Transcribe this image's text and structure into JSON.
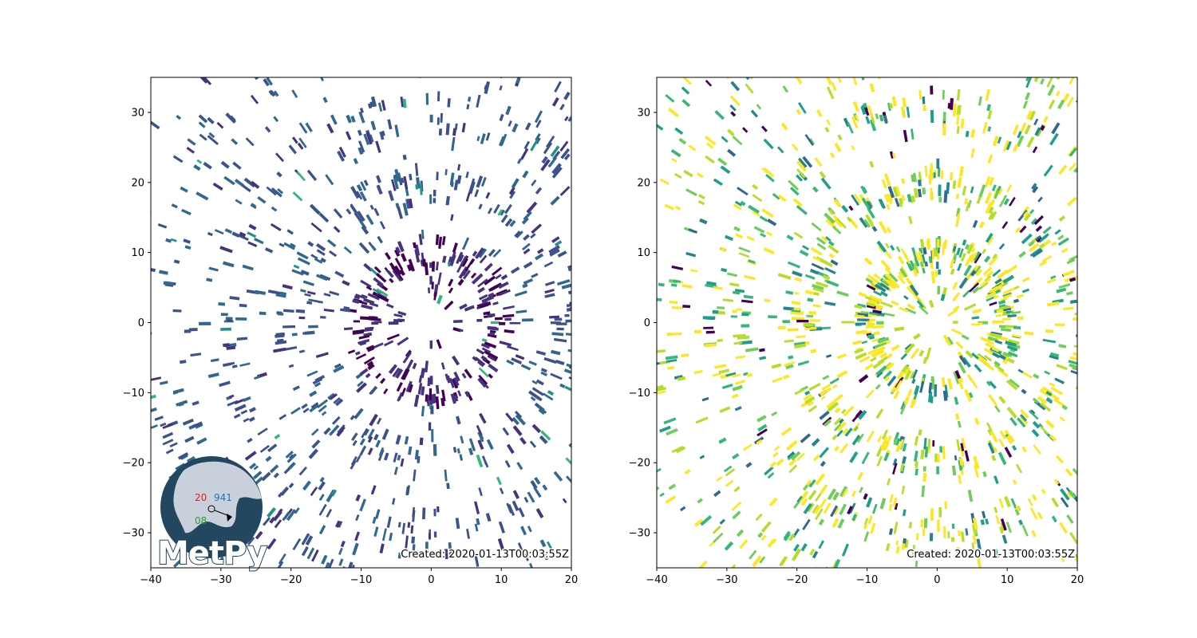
{
  "chart_data": [
    {
      "type": "heatmap",
      "panel": "left",
      "title": "",
      "xlabel": "",
      "ylabel": "",
      "xlim": [
        -40,
        20
      ],
      "ylim": [
        -35,
        35
      ],
      "xticks": [
        -40,
        -30,
        -20,
        -10,
        0,
        10,
        20
      ],
      "yticks": [
        -30,
        -20,
        -10,
        0,
        10,
        20,
        30
      ],
      "xtick_labels": [
        "−40",
        "−30",
        "−20",
        "−10",
        "0",
        "10",
        "20"
      ],
      "ytick_labels": [
        "−30",
        "−20",
        "−10",
        "0",
        "10",
        "20",
        "30"
      ],
      "grid": false,
      "colormap": "viridis",
      "dominant_colors": [
        "#3b528b",
        "#31688e",
        "#46337e",
        "#440154",
        "#21918c",
        "#35b779"
      ],
      "center": [
        0,
        0
      ],
      "inner_gap_radius_km": 2.5,
      "annotation": "Created: 2020-01-13T00:03:55Z",
      "logo": {
        "text": "MetPy",
        "station_temp": "20",
        "station_pressure": "941",
        "station_dewpoint": "08"
      }
    },
    {
      "type": "heatmap",
      "panel": "right",
      "title": "",
      "xlabel": "",
      "ylabel": "",
      "xlim": [
        -40,
        20
      ],
      "ylim": [
        -35,
        35
      ],
      "xticks": [
        -40,
        -30,
        -20,
        -10,
        0,
        10,
        20
      ],
      "yticks": [
        -30,
        -20,
        -10,
        0,
        10,
        20,
        30
      ],
      "xtick_labels": [
        "−40",
        "−30",
        "−20",
        "−10",
        "0",
        "10",
        "20"
      ],
      "ytick_labels": [
        "−30",
        "−20",
        "−10",
        "0",
        "10",
        "20",
        "30"
      ],
      "grid": false,
      "colormap": "viridis",
      "dominant_colors": [
        "#fde725",
        "#b5de2b",
        "#6ece58",
        "#35b779",
        "#1f9e89",
        "#26828e",
        "#31688e",
        "#440154"
      ],
      "center": [
        0,
        0
      ],
      "inner_gap_radius_km": 2.5,
      "annotation": "Created: 2020-01-13T00:03:55Z"
    }
  ]
}
